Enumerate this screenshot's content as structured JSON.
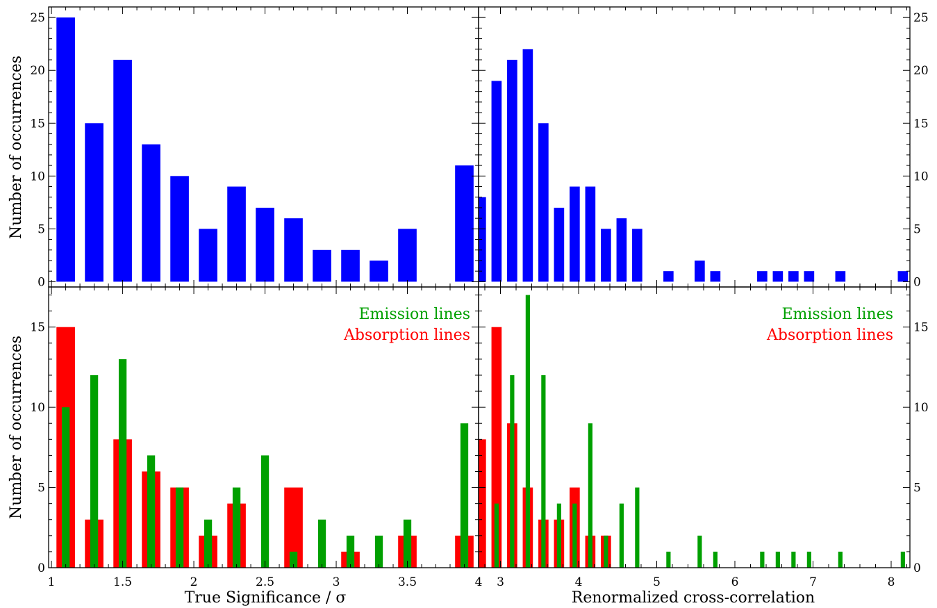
{
  "colors": {
    "single": "#0000ff",
    "emission": "#00a000",
    "absorption": "#ff0000",
    "axis": "#000000"
  },
  "labels": {
    "ylabel_top": "Number of occurrences",
    "ylabel_bottom": "Number of occurrences",
    "xlabel_left": "True Significance / σ",
    "xlabel_right": "Renormalized cross-correlation",
    "legend_emission_left": "Emission lines",
    "legend_absorption_left": "Absorption lines",
    "legend_emission_right": "Emission lines",
    "legend_absorption_right": "Absorption lines"
  },
  "chart_data": [
    {
      "type": "bar",
      "panel": "top-left",
      "xlim": [
        0.98,
        4.0
      ],
      "ylim": [
        -0.5,
        26
      ],
      "xticks": [
        "1",
        "1.5",
        "2",
        "2.5",
        "3",
        "3.5",
        "4"
      ],
      "yticks": [
        "0",
        "5",
        "10",
        "15",
        "20",
        "25"
      ],
      "bar_width": 0.13,
      "series": [
        {
          "color": "single",
          "x": [
            1.1,
            1.3,
            1.5,
            1.7,
            1.9,
            2.1,
            2.3,
            2.5,
            2.7,
            2.9,
            3.1,
            3.3,
            3.5,
            3.9
          ],
          "values": [
            25,
            15,
            21,
            13,
            10,
            5,
            9,
            7,
            6,
            3,
            3,
            2,
            5,
            11
          ]
        }
      ]
    },
    {
      "type": "bar",
      "panel": "top-right",
      "xlim": [
        2.72,
        8.24
      ],
      "ylim": [
        -0.5,
        26
      ],
      "xticks": [
        "3",
        "4",
        "5",
        "6",
        "7",
        "8"
      ],
      "yticks": [
        "0",
        "5",
        "10",
        "15",
        "20",
        "25"
      ],
      "bar_width": 0.13,
      "series": [
        {
          "color": "single",
          "x": [
            2.75,
            2.95,
            3.15,
            3.35,
            3.55,
            3.75,
            3.95,
            4.15,
            4.35,
            4.55,
            4.75,
            5.15,
            5.55,
            5.75,
            6.35,
            6.55,
            6.75,
            6.95,
            7.35,
            8.15
          ],
          "values": [
            8,
            19,
            21,
            22,
            15,
            7,
            9,
            9,
            5,
            6,
            5,
            1,
            2,
            1,
            1,
            1,
            1,
            1,
            1,
            1
          ]
        }
      ]
    },
    {
      "type": "bar",
      "panel": "bottom-left",
      "xlim": [
        0.98,
        4.0
      ],
      "ylim": [
        0,
        17.5
      ],
      "xticks": [
        "1",
        "1.5",
        "2",
        "2.5",
        "3",
        "3.5",
        "4"
      ],
      "yticks": [
        "0",
        "5",
        "10",
        "15"
      ],
      "series": [
        {
          "name": "Absorption lines",
          "color": "absorption",
          "bar_width": 0.13,
          "x": [
            1.1,
            1.3,
            1.5,
            1.7,
            1.9,
            2.1,
            2.3,
            2.7,
            3.1,
            3.5,
            3.9
          ],
          "values": [
            15,
            3,
            8,
            6,
            5,
            2,
            4,
            5,
            1,
            2,
            2
          ]
        },
        {
          "name": "Emission lines",
          "color": "emission",
          "bar_width": 0.055,
          "x": [
            1.1,
            1.3,
            1.5,
            1.7,
            1.9,
            2.1,
            2.3,
            2.5,
            2.7,
            2.9,
            3.1,
            3.3,
            3.5,
            3.9
          ],
          "values": [
            10,
            12,
            13,
            7,
            5,
            3,
            5,
            7,
            1,
            3,
            2,
            2,
            3,
            9
          ]
        }
      ]
    },
    {
      "type": "bar",
      "panel": "bottom-right",
      "xlim": [
        2.72,
        8.24
      ],
      "ylim": [
        0,
        17.5
      ],
      "xticks": [
        "3",
        "4",
        "5",
        "6",
        "7",
        "8"
      ],
      "yticks": [
        "0",
        "5",
        "10",
        "15"
      ],
      "series": [
        {
          "name": "Absorption lines",
          "color": "absorption",
          "bar_width": 0.13,
          "x": [
            2.75,
            2.95,
            3.15,
            3.35,
            3.55,
            3.75,
            3.95,
            4.15,
            4.35,
            4.55,
            4.75,
            5.15
          ],
          "values": [
            8,
            15,
            9,
            5,
            3,
            3,
            5,
            2,
            2,
            0,
            0,
            0
          ]
        },
        {
          "name": "Emission lines",
          "color": "emission",
          "bar_width": 0.055,
          "x": [
            2.95,
            3.15,
            3.35,
            3.55,
            3.75,
            3.95,
            4.15,
            4.35,
            4.55,
            4.75,
            5.15,
            5.55,
            5.75,
            6.35,
            6.55,
            6.75,
            6.95,
            7.35,
            8.15
          ],
          "values": [
            4,
            12,
            17,
            12,
            4,
            4,
            9,
            2,
            4,
            5,
            1,
            2,
            1,
            1,
            1,
            1,
            1,
            1,
            1
          ]
        }
      ]
    }
  ]
}
